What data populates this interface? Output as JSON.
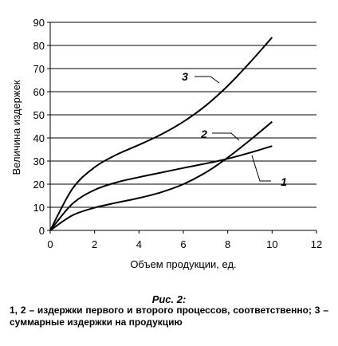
{
  "chart_data": {
    "type": "line",
    "xlabel": "Объем продукции, ед.",
    "ylabel": "Величина издержек",
    "xlim": [
      0,
      12
    ],
    "ylim": [
      0,
      90
    ],
    "x_ticks": [
      0,
      2,
      4,
      6,
      8,
      10,
      12
    ],
    "y_ticks": [
      0,
      10,
      20,
      30,
      40,
      50,
      60,
      70,
      80,
      90
    ],
    "grid": "horizontal",
    "series": [
      {
        "name": "1",
        "x": [
          0,
          1,
          2,
          3,
          4,
          5,
          6,
          7,
          8,
          9,
          10
        ],
        "y": [
          0,
          11.5,
          17.5,
          20.8,
          23,
          25,
          27,
          28.9,
          31,
          33.6,
          36.5
        ]
      },
      {
        "name": "2",
        "x": [
          0,
          1,
          2,
          3,
          4,
          5,
          6,
          7,
          8,
          9,
          10
        ],
        "y": [
          0,
          6.5,
          9.8,
          12,
          14,
          16.5,
          20,
          25,
          31.5,
          39,
          47
        ]
      },
      {
        "name": "3",
        "x": [
          0,
          1,
          2,
          3,
          4,
          5,
          6,
          7,
          8,
          9,
          10
        ],
        "y": [
          0,
          18,
          27.3,
          32.8,
          37,
          41.5,
          47,
          53.9,
          62.5,
          72.6,
          83.5
        ]
      }
    ]
  },
  "caption": {
    "title": "Рис. 2:",
    "text": "1, 2 – издержки первого и второго процессов, соответственно; 3 – суммарные издержки на продукцию"
  }
}
